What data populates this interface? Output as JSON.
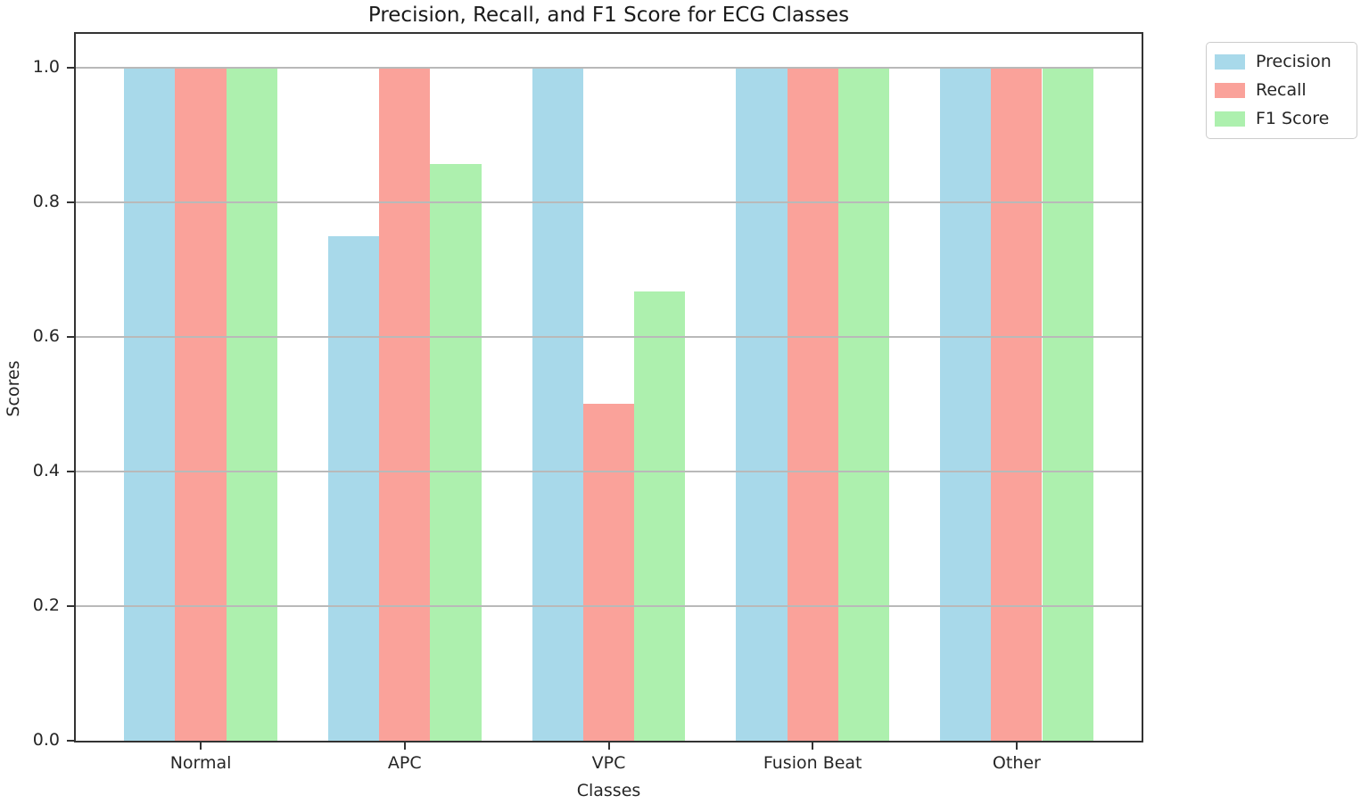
{
  "figure_title": "Precision, Recall, and F1 Score for ECG Classes",
  "chart_data": {
    "type": "bar",
    "title": "Precision, Recall, and F1 Score for ECG Classes",
    "xlabel": "Classes",
    "ylabel": "Scores",
    "categories": [
      "Normal",
      "APC",
      "VPC",
      "Fusion Beat",
      "Other"
    ],
    "series": [
      {
        "name": "Precision",
        "color": "#A8D9EA",
        "values": [
          1.0,
          0.75,
          1.0,
          1.0,
          1.0
        ]
      },
      {
        "name": "Recall",
        "color": "#FAA29A",
        "values": [
          1.0,
          1.0,
          0.5,
          1.0,
          1.0
        ]
      },
      {
        "name": "F1 Score",
        "color": "#ADF0AE",
        "values": [
          1.0,
          0.857,
          0.667,
          1.0,
          1.0
        ]
      }
    ],
    "yticks": [
      0.0,
      0.2,
      0.4,
      0.6,
      0.8,
      1.0
    ],
    "ytick_labels": [
      "0.0",
      "0.2",
      "0.4",
      "0.6",
      "0.8",
      "1.0"
    ],
    "ylim": [
      0,
      1.05
    ],
    "bar_width_units": 0.25,
    "grid": true,
    "grid_on_top": true,
    "legend_position": "outside-upper-right",
    "colors": {
      "spine": "#333333",
      "grid": "#b9b9b9",
      "text": "#262626",
      "background": "#ffffff"
    }
  }
}
